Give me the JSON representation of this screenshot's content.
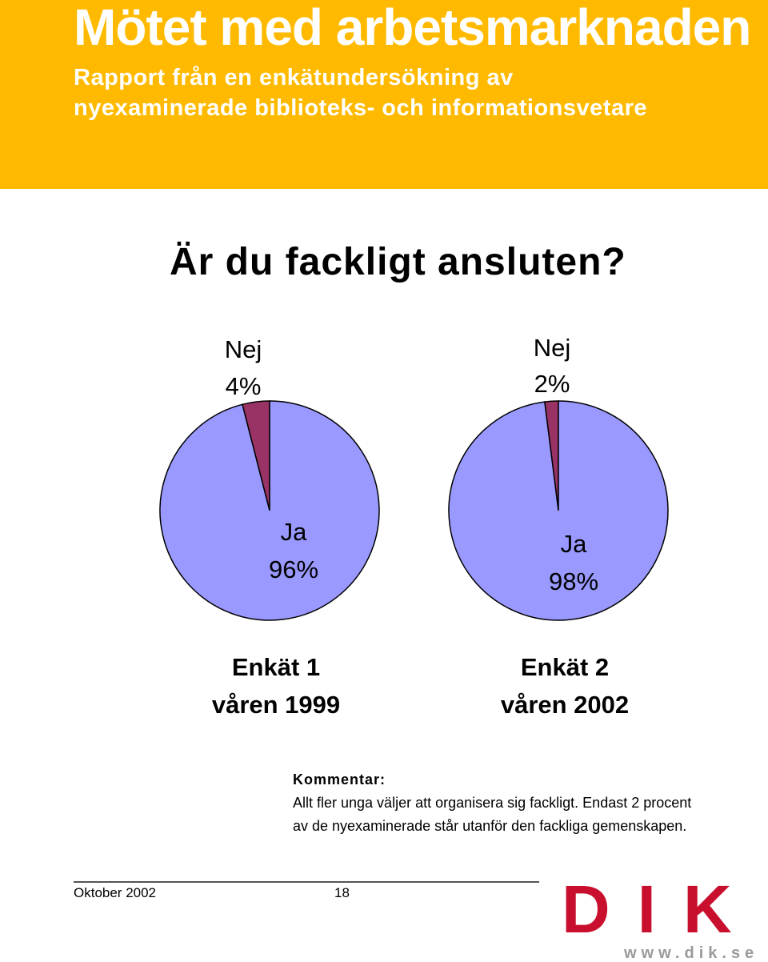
{
  "header": {
    "title": "Mötet med arbetsmarknaden",
    "subtitle_line1": "Rapport från en enkätundersökning av",
    "subtitle_line2": "nyexaminerade biblioteks- och informationsvetare"
  },
  "question": "Är du fackligt ansluten?",
  "colors": {
    "banner": "#ffba00",
    "ja": "#9999ff",
    "nej": "#993366",
    "logo": "#c8102e"
  },
  "chart_data": [
    {
      "type": "pie",
      "title": "Enkät 1 våren 1999",
      "caption_line1": "Enkät 1",
      "caption_line2": "våren 1999",
      "slices": [
        {
          "label": "Nej",
          "value": 4,
          "value_label": "4%"
        },
        {
          "label": "Ja",
          "value": 96,
          "value_label": "96%"
        }
      ]
    },
    {
      "type": "pie",
      "title": "Enkät 2 våren 2002",
      "caption_line1": "Enkät 2",
      "caption_line2": "våren 2002",
      "slices": [
        {
          "label": "Nej",
          "value": 2,
          "value_label": "2%"
        },
        {
          "label": "Ja",
          "value": 98,
          "value_label": "98%"
        }
      ]
    }
  ],
  "comment": {
    "heading": "Kommentar:",
    "line1": "Allt fler unga väljer att organisera sig fackligt. Endast 2 procent",
    "line2": "av de nyexaminerade står utanför den fackliga gemenskapen."
  },
  "footer": {
    "date": "Oktober 2002",
    "page": "18"
  },
  "logo": {
    "text": "DIK",
    "url": "www.dik.se"
  }
}
